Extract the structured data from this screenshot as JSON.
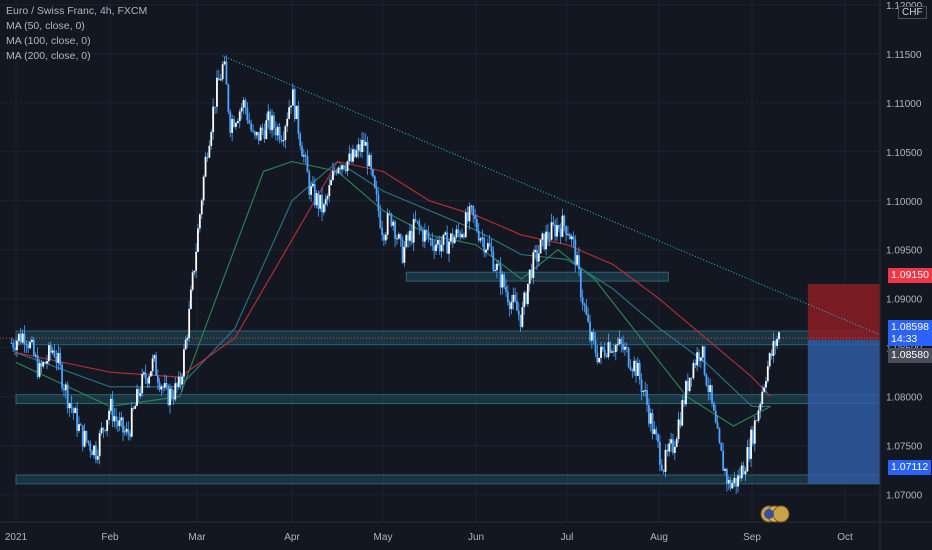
{
  "legend": {
    "title": "Euro / Swiss Franc, 4h, FXCM",
    "ma": [
      "MA (50, close, 0)",
      "MA (100, close, 0)",
      "MA (200, close, 0)"
    ]
  },
  "currency_tag": "CHF",
  "price_badges": [
    {
      "label": "1.09150",
      "kind": "stop"
    },
    {
      "label": "1.08598",
      "sub": "14:33",
      "kind": "current"
    },
    {
      "label": "1.08580",
      "kind": "level"
    },
    {
      "label": "1.07112",
      "kind": "target"
    }
  ],
  "colors": {
    "background": "#131722",
    "candles": "#4da6ff",
    "ma50": "#2e8b57",
    "ma100": "#2a7a8a",
    "ma200": "#c0303a",
    "trendline": "#26c6da",
    "stop_zone": "#8b1c22",
    "target_zone": "#2f5aa0"
  },
  "chart_data": {
    "type": "line",
    "series_kind": "candlestick",
    "title": "Euro / Swiss Franc, 4h, FXCM",
    "xlabel": "",
    "ylabel": "",
    "x_ticks": [
      "2021",
      "Feb",
      "Mar",
      "Apr",
      "May",
      "Jun",
      "Jul",
      "Aug",
      "Sep",
      "Oct"
    ],
    "y_ticks": [
      "1.07000",
      "1.07500",
      "1.08000",
      "1.08500",
      "1.09000",
      "1.09500",
      "1.10000",
      "1.10500",
      "1.11000",
      "1.11500",
      "1.12000"
    ],
    "ylim": [
      1.0672,
      1.1205
    ],
    "x_domain": [
      0,
      10
    ],
    "price_path": [
      [
        -0.05,
        1.0855
      ],
      [
        0.1,
        1.0865
      ],
      [
        0.25,
        1.0825
      ],
      [
        0.4,
        1.085
      ],
      [
        0.55,
        1.08
      ],
      [
        0.7,
        1.076
      ],
      [
        0.85,
        1.0745
      ],
      [
        1.0,
        1.079
      ],
      [
        1.1,
        1.077
      ],
      [
        1.2,
        1.076
      ],
      [
        1.35,
        1.081
      ],
      [
        1.5,
        1.0835
      ],
      [
        1.65,
        1.08
      ],
      [
        1.8,
        1.081
      ],
      [
        1.9,
        1.0875
      ],
      [
        2.0,
        1.096
      ],
      [
        2.1,
        1.105
      ],
      [
        2.2,
        1.111
      ],
      [
        2.28,
        1.114
      ],
      [
        2.35,
        1.108
      ],
      [
        2.5,
        1.11
      ],
      [
        2.6,
        1.106
      ],
      [
        2.75,
        1.108
      ],
      [
        2.9,
        1.107
      ],
      [
        3.0,
        1.111
      ],
      [
        3.1,
        1.106
      ],
      [
        3.2,
        1.101
      ],
      [
        3.35,
        1.099
      ],
      [
        3.5,
        1.104
      ],
      [
        3.65,
        1.104
      ],
      [
        3.8,
        1.106
      ],
      [
        3.9,
        1.101
      ],
      [
        4.0,
        1.097
      ],
      [
        4.1,
        1.0985
      ],
      [
        4.2,
        1.0945
      ],
      [
        4.35,
        1.0975
      ],
      [
        4.5,
        1.096
      ],
      [
        4.65,
        1.0955
      ],
      [
        4.8,
        1.0965
      ],
      [
        4.95,
        1.0985
      ],
      [
        5.05,
        1.0965
      ],
      [
        5.15,
        1.095
      ],
      [
        5.25,
        1.0925
      ],
      [
        5.4,
        1.0895
      ],
      [
        5.5,
        1.088
      ],
      [
        5.6,
        1.093
      ],
      [
        5.75,
        1.096
      ],
      [
        5.9,
        1.0975
      ],
      [
        6.0,
        1.0975
      ],
      [
        6.08,
        1.095
      ],
      [
        6.15,
        1.091
      ],
      [
        6.25,
        1.086
      ],
      [
        6.35,
        1.084
      ],
      [
        6.45,
        1.0855
      ],
      [
        6.6,
        1.085
      ],
      [
        6.75,
        1.083
      ],
      [
        6.85,
        1.08
      ],
      [
        6.95,
        1.076
      ],
      [
        7.05,
        1.073
      ],
      [
        7.15,
        1.075
      ],
      [
        7.25,
        1.079
      ],
      [
        7.35,
        1.083
      ],
      [
        7.45,
        1.085
      ],
      [
        7.55,
        1.08
      ],
      [
        7.65,
        1.0745
      ],
      [
        7.75,
        1.071
      ],
      [
        7.85,
        1.0715
      ],
      [
        7.95,
        1.074
      ],
      [
        8.05,
        1.078
      ],
      [
        8.15,
        1.0825
      ],
      [
        8.25,
        1.0855
      ],
      [
        8.3,
        1.0865
      ]
    ],
    "moving_averages": [
      {
        "name": "MA (50, close, 0)",
        "values": [
          [
            0.0,
            1.0835
          ],
          [
            1.0,
            1.079
          ],
          [
            1.8,
            1.08
          ],
          [
            2.2,
            1.09
          ],
          [
            2.7,
            1.103
          ],
          [
            3.0,
            1.104
          ],
          [
            3.5,
            1.103
          ],
          [
            4.0,
            1.099
          ],
          [
            4.5,
            1.0965
          ],
          [
            5.0,
            1.0955
          ],
          [
            5.5,
            1.092
          ],
          [
            5.9,
            1.095
          ],
          [
            6.3,
            1.092
          ],
          [
            6.8,
            1.086
          ],
          [
            7.3,
            1.08
          ],
          [
            7.8,
            1.077
          ],
          [
            8.2,
            1.079
          ]
        ]
      },
      {
        "name": "MA (100, close, 0)",
        "values": [
          [
            0.0,
            1.0845
          ],
          [
            1.0,
            1.081
          ],
          [
            1.8,
            1.081
          ],
          [
            2.4,
            1.087
          ],
          [
            3.0,
            1.1
          ],
          [
            3.5,
            1.104
          ],
          [
            4.0,
            1.101
          ],
          [
            4.5,
            1.099
          ],
          [
            5.0,
            1.097
          ],
          [
            5.5,
            1.0945
          ],
          [
            6.0,
            1.094
          ],
          [
            6.5,
            1.091
          ],
          [
            7.0,
            1.087
          ],
          [
            7.5,
            1.0835
          ],
          [
            8.0,
            1.079
          ],
          [
            8.2,
            1.079
          ]
        ]
      },
      {
        "name": "MA (200, close, 0)",
        "values": [
          [
            0.0,
            1.0845
          ],
          [
            1.0,
            1.0825
          ],
          [
            1.8,
            1.082
          ],
          [
            2.4,
            1.086
          ],
          [
            3.0,
            1.096
          ],
          [
            3.5,
            1.104
          ],
          [
            4.0,
            1.103
          ],
          [
            4.5,
            1.1
          ],
          [
            5.0,
            1.0985
          ],
          [
            5.5,
            1.0965
          ],
          [
            6.0,
            1.0955
          ],
          [
            6.5,
            1.0935
          ],
          [
            7.0,
            1.09
          ],
          [
            7.5,
            1.086
          ],
          [
            8.0,
            1.082
          ],
          [
            8.2,
            1.08
          ]
        ]
      }
    ],
    "trendline": [
      [
        2.27,
        1.1148
      ],
      [
        10.2,
        1.083
      ]
    ],
    "support_zones": [
      {
        "from_x": 0,
        "to_x": 9.6,
        "y_low": 1.0855,
        "y_high": 1.0865
      },
      {
        "from_x": 0,
        "to_x": 9.6,
        "y_low": 1.0795,
        "y_high": 1.08
      },
      {
        "from_x": 4.25,
        "to_x": 7.1,
        "y_low": 1.092,
        "y_high": 1.0925
      },
      {
        "from_x": 0,
        "to_x": 9.6,
        "y_low": 1.0713,
        "y_high": 1.0718
      }
    ],
    "position": {
      "entry": 1.0858,
      "stop": 1.0915,
      "target": 1.07112,
      "from_x": 8.6,
      "to_x": 9.6
    },
    "current_price": 1.08598,
    "grid": true
  }
}
